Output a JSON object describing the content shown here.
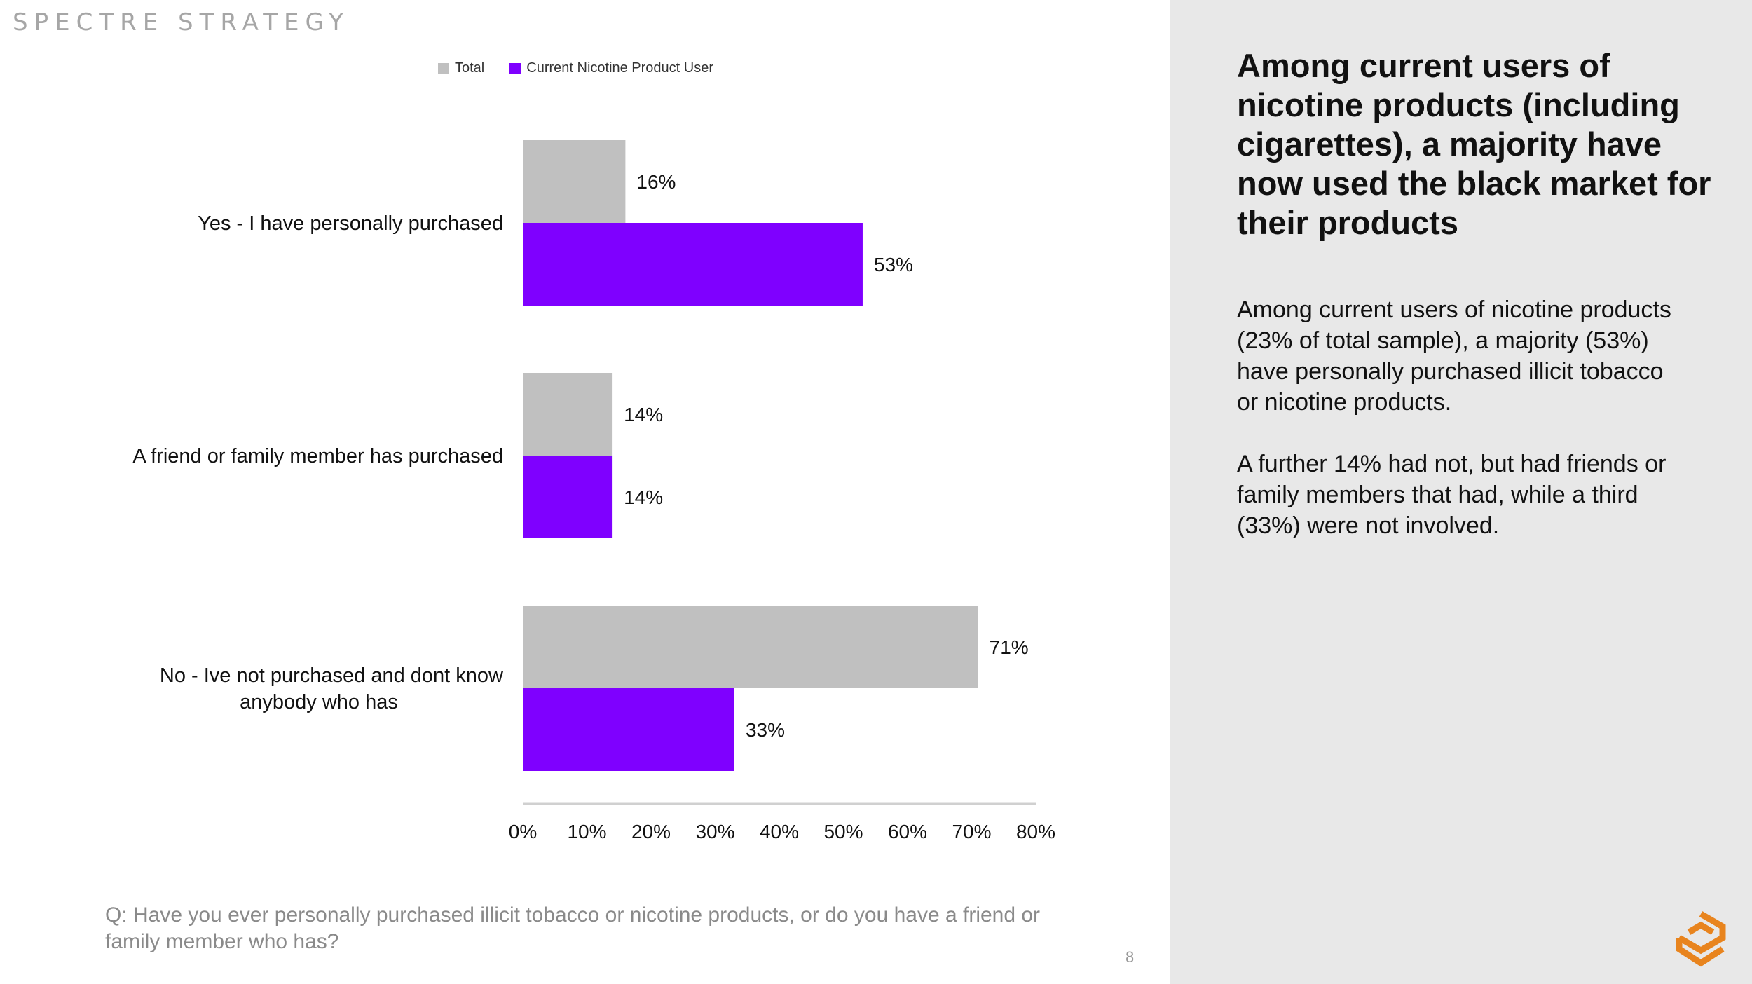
{
  "brand": "SPECTRE STRATEGY",
  "headline": "Among current users of nicotine products (including cigarettes), a majority have now used the black market for their products",
  "body": {
    "paragraph1": "Among current users of nicotine products (23% of total sample), a majority (53%) have personally purchased illicit tobacco or nicotine products.",
    "paragraph2": "A further 14% had not, but had friends or family members that had, while a third (33%) were not involved."
  },
  "question": "Q: Have you ever personally purchased illicit tobacco or nicotine products, or do you have a friend or family member who has?",
  "page_number": "8",
  "colors": {
    "total": "#c0c0c0",
    "users": "#7f00ff",
    "panel": "#e8e8e8",
    "logo": "#e8841e"
  },
  "chart_data": {
    "type": "bar",
    "orientation": "horizontal",
    "categories": [
      [
        "Yes - I have personally purchased"
      ],
      [
        "A friend or family member has purchased"
      ],
      [
        "No - Ive not purchased and dont know",
        "anybody who has"
      ]
    ],
    "series": [
      {
        "name": "Total",
        "values": [
          16,
          14,
          71
        ],
        "labels": [
          "16%",
          "14%",
          "71%"
        ]
      },
      {
        "name": "Current Nicotine Product User",
        "values": [
          53,
          14,
          33
        ],
        "labels": [
          "53%",
          "14%",
          "33%"
        ]
      }
    ],
    "xlim": [
      0,
      80
    ],
    "xticks": [
      "0%",
      "10%",
      "20%",
      "30%",
      "40%",
      "50%",
      "60%",
      "70%",
      "80%"
    ],
    "legend_position": "top",
    "grid": false
  }
}
